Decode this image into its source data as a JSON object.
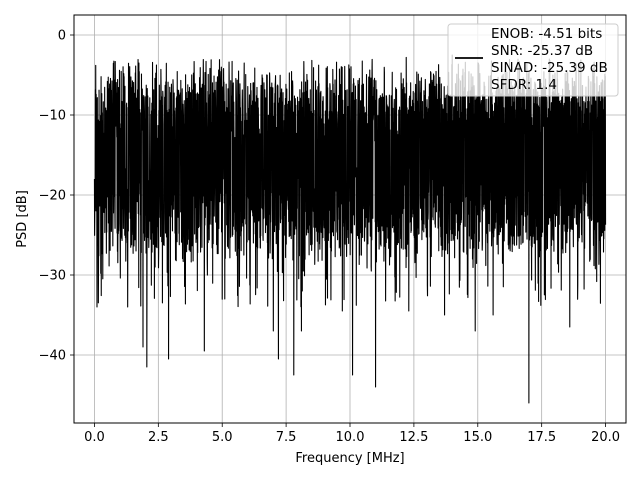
{
  "chart_data": {
    "type": "line",
    "xlabel": "Frequency [MHz]",
    "ylabel": "PSD [dB]",
    "xlim": [
      -0.8,
      20.8
    ],
    "ylim": [
      -48.5,
      2.5
    ],
    "xticks": [
      0.0,
      2.5,
      5.0,
      7.5,
      10.0,
      12.5,
      15.0,
      17.5,
      20.0
    ],
    "xtick_labels": [
      "0.0",
      "2.5",
      "5.0",
      "7.5",
      "10.0",
      "12.5",
      "15.0",
      "17.5",
      "20.0"
    ],
    "yticks": [
      0,
      -10,
      -20,
      -30,
      -40
    ],
    "ytick_labels": [
      "0",
      "−10",
      "−20",
      "−30",
      "−40"
    ],
    "grid": true,
    "legend_position": "top-right",
    "legend_entries": [
      "ENOB: -4.51 bits",
      "SNR: -25.37 dB",
      "SINAD: -25.39 dB",
      "SFDR: 1.4"
    ],
    "series": [
      {
        "color": "#000000",
        "x_range": [
          0,
          20
        ],
        "band": {
          "upper_typical": -7,
          "lower_typical": -25
        },
        "peaks": [
          {
            "x": 0.05,
            "y": -3.8
          },
          {
            "x": 11.0,
            "y": 0.2
          },
          {
            "x": 14.0,
            "y": -2.5
          },
          {
            "x": 12.2,
            "y": -2.8
          },
          {
            "x": 17.8,
            "y": -3.0
          }
        ],
        "dips": [
          {
            "x": 0.1,
            "y": -34.0
          },
          {
            "x": 1.3,
            "y": -34.0
          },
          {
            "x": 1.9,
            "y": -39.0
          },
          {
            "x": 2.05,
            "y": -41.5
          },
          {
            "x": 2.9,
            "y": -40.5
          },
          {
            "x": 4.3,
            "y": -39.5
          },
          {
            "x": 5.1,
            "y": -33.0
          },
          {
            "x": 7.0,
            "y": -37.0
          },
          {
            "x": 7.2,
            "y": -40.5
          },
          {
            "x": 7.8,
            "y": -42.5
          },
          {
            "x": 8.1,
            "y": -37.0
          },
          {
            "x": 9.7,
            "y": -34.5
          },
          {
            "x": 10.1,
            "y": -42.5
          },
          {
            "x": 11.0,
            "y": -44.0
          },
          {
            "x": 12.3,
            "y": -34.5
          },
          {
            "x": 13.7,
            "y": -35.0
          },
          {
            "x": 14.9,
            "y": -37.0
          },
          {
            "x": 15.6,
            "y": -35.0
          },
          {
            "x": 17.0,
            "y": -46.0
          },
          {
            "x": 18.6,
            "y": -36.5
          }
        ]
      }
    ]
  }
}
